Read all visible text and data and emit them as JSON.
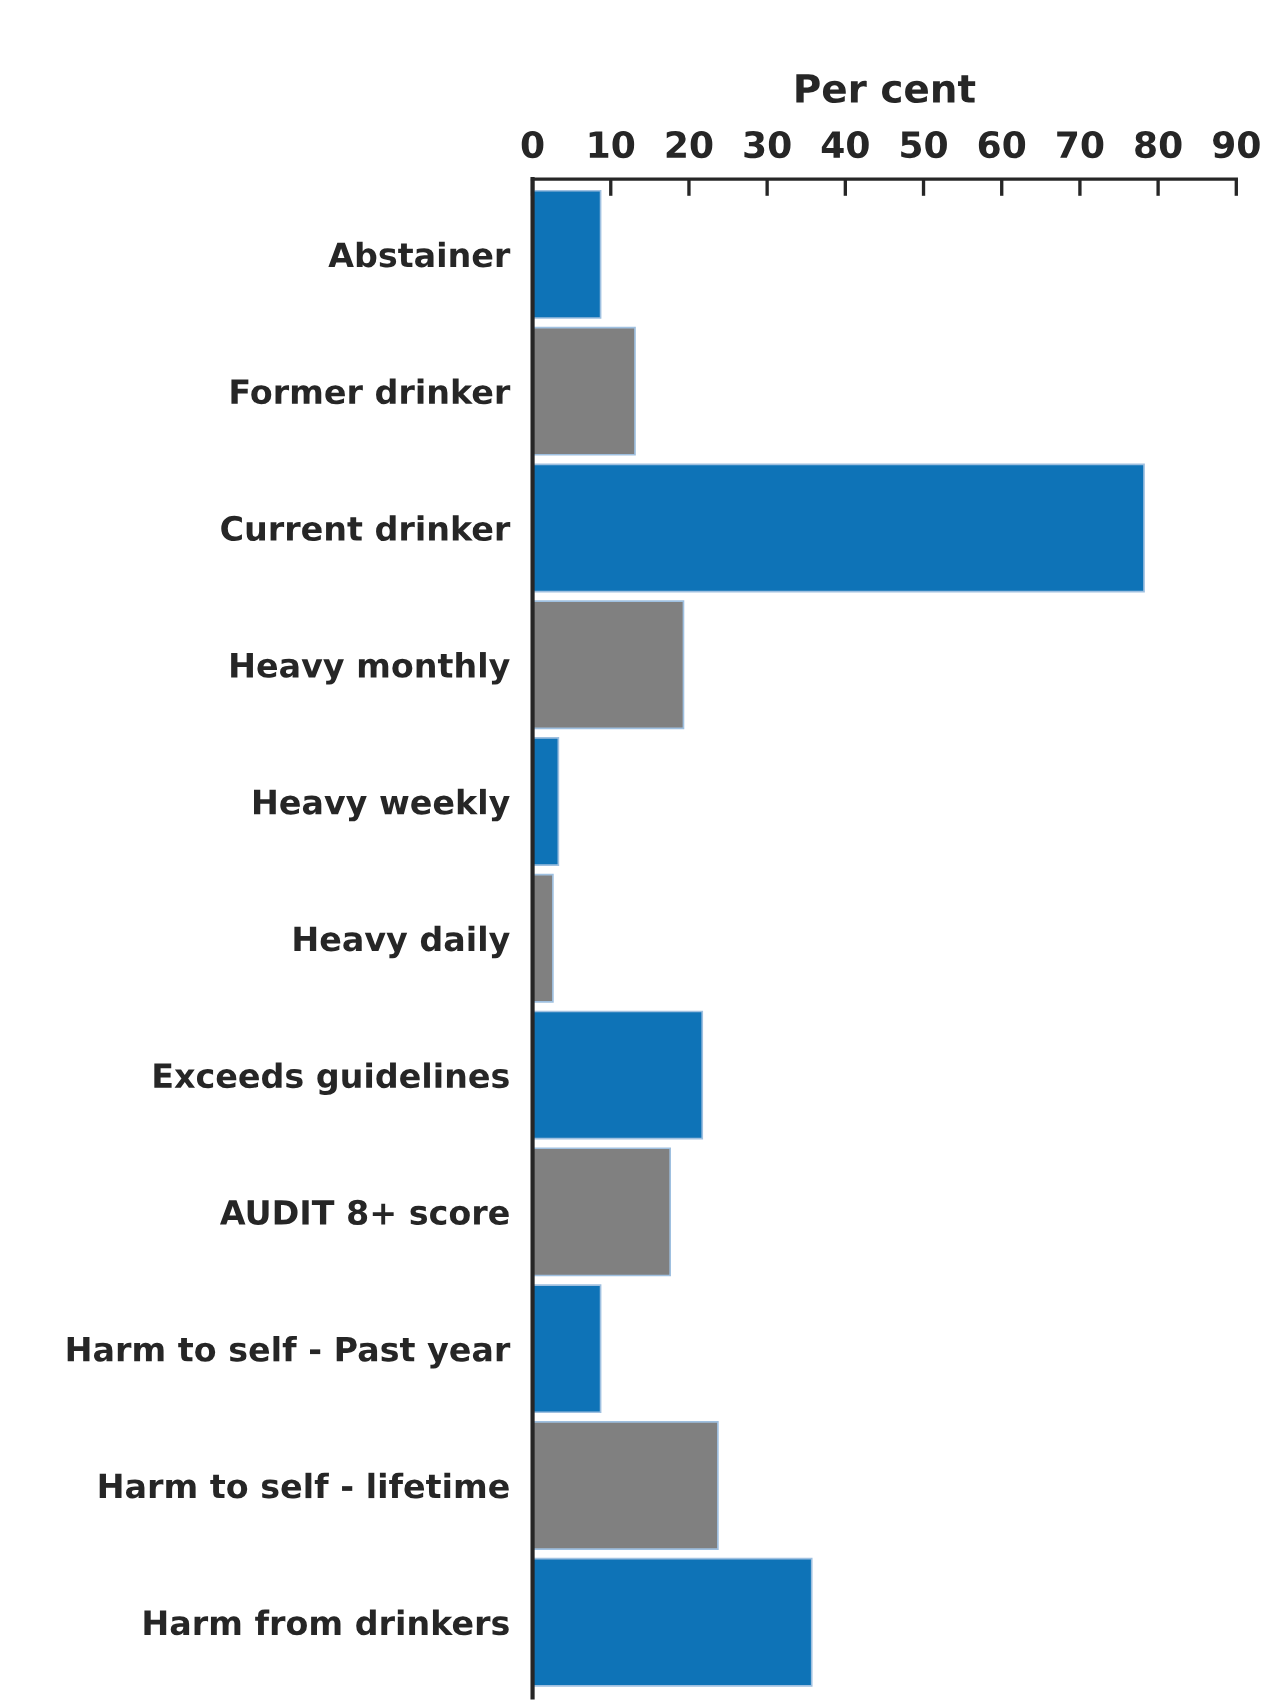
{
  "chart_data": {
    "type": "bar",
    "orientation": "horizontal",
    "xlabel": "Per cent",
    "categories": [
      "Abstainer",
      "Former drinker",
      "Current drinker",
      "Heavy monthly",
      "Heavy weekly",
      "Heavy daily",
      "Exceeds guidelines",
      "AUDIT 8+ score",
      "Harm to self - Past year",
      "Harm to self - lifetime",
      "Harm from drinkers"
    ],
    "values": [
      8.7,
      13.1,
      78.2,
      19.3,
      3.3,
      2.6,
      21.7,
      17.6,
      8.7,
      23.7,
      35.7
    ],
    "colors": [
      "#0e73b7",
      "#808080",
      "#0e73b7",
      "#808080",
      "#0e73b7",
      "#808080",
      "#0e73b7",
      "#808080",
      "#0e73b7",
      "#808080",
      "#0e73b7"
    ],
    "xlim": [
      0,
      90
    ],
    "xticks": [
      0,
      10,
      20,
      30,
      40,
      50,
      60,
      70,
      80,
      90
    ],
    "grid": false,
    "legend": false
  }
}
